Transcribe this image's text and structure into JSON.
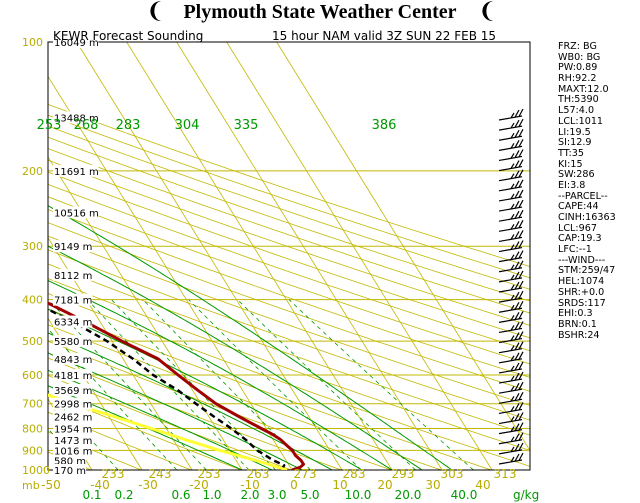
{
  "header": {
    "title": "Plymouth State Weather Center",
    "left_icon": "left-tornado-flag-icon",
    "right_icon": "right-tornado-flag-icon"
  },
  "subtitle": {
    "station": "KEWR Forecast Sounding",
    "run": "15 hour NAM valid 3Z SUN 22 FEB 15"
  },
  "colors": {
    "isotherm": "#c2b800",
    "isobar": "#c2b800",
    "dry_adiabat": "#c2b800",
    "moist_adiabat": "#009900",
    "mixing_ratio": "#009900",
    "temperature": "#a00000",
    "dewpoint": "#000000",
    "parcel": "#ffff33",
    "labels_yellow": "#b8ad00",
    "labels_green": "#009900"
  },
  "chart_data": {
    "type": "skew-t",
    "pressure_levels": [
      100,
      200,
      300,
      400,
      500,
      600,
      700,
      800,
      900,
      1000
    ],
    "pressure_range_mb": [
      100,
      1000
    ],
    "x_axis_label": "mb",
    "temperature_ticks_c": [
      "-50",
      "-40",
      "-30",
      "-20",
      "-10",
      "0",
      "10",
      "20",
      "30",
      "40"
    ],
    "mixing_ratio_unit": "g/kg",
    "mixing_ratio_ticks": [
      "0.1",
      "0.2",
      "0.6",
      "1.0",
      "2.0",
      "3.0",
      "5.0",
      "10.0",
      "20.0",
      "40.0"
    ],
    "theta_e_labels_top": [
      "253",
      "268",
      "283",
      "304",
      "335",
      "386"
    ],
    "theta_labels_bottom": [
      "233",
      "243",
      "253",
      "263",
      "273",
      "283",
      "293",
      "303",
      "313"
    ],
    "heights": [
      {
        "p": 100,
        "label": "16049 m"
      },
      {
        "p": 150,
        "label": "13488 m"
      },
      {
        "p": 200,
        "label": "11691 m"
      },
      {
        "p": 250,
        "label": "10516 m"
      },
      {
        "p": 300,
        "label": "9149 m"
      },
      {
        "p": 350,
        "label": "8112 m"
      },
      {
        "p": 400,
        "label": "7181 m"
      },
      {
        "p": 450,
        "label": "6334 m"
      },
      {
        "p": 500,
        "label": "5580 m"
      },
      {
        "p": 550,
        "label": "4843 m"
      },
      {
        "p": 600,
        "label": "4181 m"
      },
      {
        "p": 650,
        "label": "3569 m"
      },
      {
        "p": 700,
        "label": "2998 m"
      },
      {
        "p": 750,
        "label": "2462 m"
      },
      {
        "p": 800,
        "label": "1954 m"
      },
      {
        "p": 850,
        "label": "1473 m"
      },
      {
        "p": 900,
        "label": "1016 m"
      },
      {
        "p": 950,
        "label": "580 m"
      },
      {
        "p": 1000,
        "label": "170 m"
      }
    ],
    "series": [
      {
        "name": "temperature",
        "points": [
          {
            "p": 1000,
            "t": 0.0
          },
          {
            "p": 985,
            "t": 2.0
          },
          {
            "p": 970,
            "t": 3.0
          },
          {
            "p": 950,
            "t": 3.0
          },
          {
            "p": 925,
            "t": 2.5
          },
          {
            "p": 900,
            "t": 2.5
          },
          {
            "p": 875,
            "t": 2.0
          },
          {
            "p": 850,
            "t": 1.5
          },
          {
            "p": 825,
            "t": 0.5
          },
          {
            "p": 800,
            "t": -1.0
          },
          {
            "p": 750,
            "t": -4.0
          },
          {
            "p": 700,
            "t": -7.0
          },
          {
            "p": 650,
            "t": -9.0
          },
          {
            "p": 600,
            "t": -11.0
          },
          {
            "p": 550,
            "t": -13.0
          },
          {
            "p": 500,
            "t": -18.0
          },
          {
            "p": 450,
            "t": -23.0
          },
          {
            "p": 400,
            "t": -29.0
          },
          {
            "p": 350,
            "t": -36.0
          },
          {
            "p": 300,
            "t": -43.5
          },
          {
            "p": 250,
            "t": -52.0
          },
          {
            "p": 200,
            "t": -56.0
          },
          {
            "p": 175,
            "t": -56.0
          },
          {
            "p": 150,
            "t": -55.0
          },
          {
            "p": 125,
            "t": -56.0
          },
          {
            "p": 100,
            "t": -60.0
          }
        ]
      },
      {
        "name": "dewpoint",
        "points": [
          {
            "p": 1000,
            "t": -2.0
          },
          {
            "p": 975,
            "t": -1.0
          },
          {
            "p": 950,
            "t": -2.5
          },
          {
            "p": 925,
            "t": -3.5
          },
          {
            "p": 900,
            "t": -4.5
          },
          {
            "p": 850,
            "t": -5.5
          },
          {
            "p": 800,
            "t": -7.0
          },
          {
            "p": 750,
            "t": -9.0
          },
          {
            "p": 700,
            "t": -11.0
          },
          {
            "p": 650,
            "t": -13.0
          },
          {
            "p": 600,
            "t": -16.0
          },
          {
            "p": 550,
            "t": -18.0
          },
          {
            "p": 500,
            "t": -21.0
          },
          {
            "p": 450,
            "t": -25.5
          },
          {
            "p": 400,
            "t": -31.5
          },
          {
            "p": 350,
            "t": -39.0
          },
          {
            "p": 315,
            "t": -44.5
          }
        ]
      },
      {
        "name": "parcel",
        "points": [
          {
            "p": 1000,
            "t": -1.0
          },
          {
            "p": 950,
            "t": -6.0
          },
          {
            "p": 900,
            "t": -12.0
          },
          {
            "p": 850,
            "t": -17.5
          },
          {
            "p": 800,
            "t": -23.0
          },
          {
            "p": 750,
            "t": -29.0
          },
          {
            "p": 700,
            "t": -35.5
          },
          {
            "p": 650,
            "t": -42.0
          },
          {
            "p": 600,
            "t": -49.0
          },
          {
            "p": 550,
            "t": -55.5
          },
          {
            "p": 500,
            "t": -62.5
          },
          {
            "p": 450,
            "t": -70.5
          },
          {
            "p": 400,
            "t": -78.5
          },
          {
            "p": 350,
            "t": -87.0
          },
          {
            "p": 300,
            "t": -96.0
          },
          {
            "p": 250,
            "t": -106.0
          },
          {
            "p": 200,
            "t": -116.0
          },
          {
            "p": 175,
            "t": -122.0
          },
          {
            "p": 150,
            "t": -128.0
          },
          {
            "p": 125,
            "t": -133.0
          }
        ]
      }
    ],
    "wind_barbs_count": 35
  },
  "indices": [
    "FRZ: BG",
    "WB0: BG",
    "PW:0.89",
    "RH:92.2",
    "MAXT:12.0",
    "TH:5390",
    "L57:4.0",
    "LCL:1011",
    "LI:19.5",
    "SI:12.9",
    "TT:35",
    "KI:15",
    "SW:286",
    "EI:3.8",
    "--PARCEL--",
    "CAPE:44",
    "CINH:16363",
    "LCL:967",
    "CAP:19.3",
    "LFC:--1",
    "---WIND---",
    "STM:259/47",
    "HEL:1074",
    "SHR:+0.0",
    "SRDS:117",
    "EHI:0.3",
    "BRN:0.1",
    "BSHR:24"
  ]
}
